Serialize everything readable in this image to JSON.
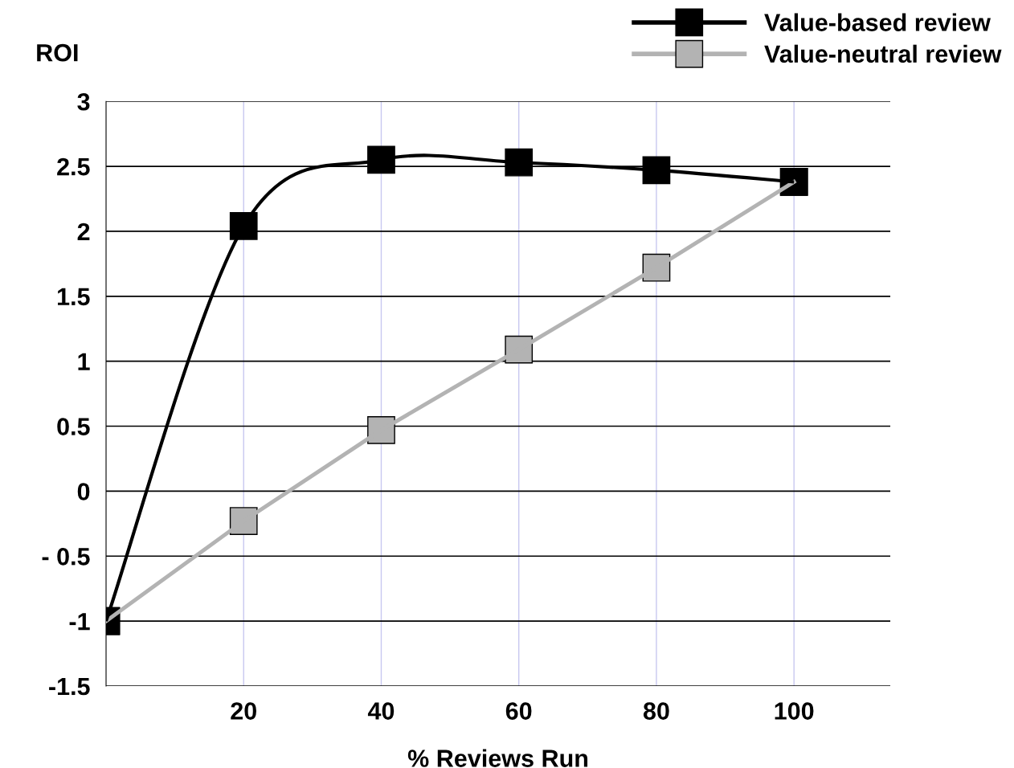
{
  "chart_data": {
    "type": "line",
    "ylabel": "ROI",
    "xlabel": "% Reviews Run",
    "x": [
      0,
      20,
      40,
      60,
      80,
      100
    ],
    "series": [
      {
        "name": "Value-based review",
        "color": "#000000",
        "values": [
          -1,
          2.04,
          2.55,
          2.53,
          2.47,
          2.38
        ]
      },
      {
        "name": "Value-neutral review",
        "color": "#b3b3b3",
        "values": [
          -1,
          -0.23,
          0.47,
          1.09,
          1.72,
          2.38
        ]
      }
    ],
    "xlim": [
      0,
      114
    ],
    "xticks": [
      20,
      40,
      60,
      80,
      100
    ],
    "ylim": [
      -1.5,
      3
    ],
    "yticks": [
      {
        "value": -1.5,
        "label": "-1.5"
      },
      {
        "value": -1,
        "label": "-1"
      },
      {
        "value": -0.5,
        "label": "- 0.5"
      },
      0,
      0.5,
      1,
      1.5,
      2,
      2.5,
      3
    ],
    "grid": true,
    "legend": "top right",
    "marker": "square",
    "line_style": "solid"
  }
}
